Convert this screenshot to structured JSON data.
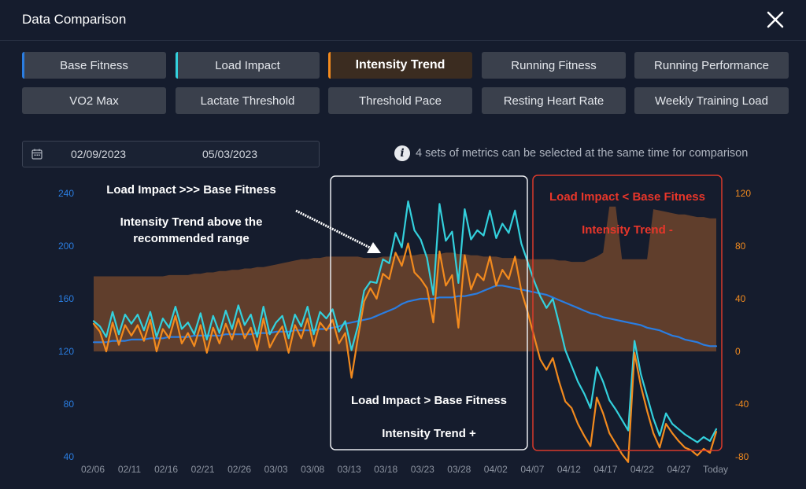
{
  "header": {
    "title": "Data Comparison",
    "close_icon": "close-icon"
  },
  "metrics": [
    {
      "label": "Base Fitness",
      "selected": true,
      "color": "#2a7de1"
    },
    {
      "label": "Load Impact",
      "selected": true,
      "color": "#33d0dc"
    },
    {
      "label": "Intensity Trend",
      "selected": true,
      "color": "#f28a1e",
      "active": true
    },
    {
      "label": "Running Fitness",
      "selected": false
    },
    {
      "label": "Running Performance",
      "selected": false
    },
    {
      "label": "VO2 Max",
      "selected": false
    },
    {
      "label": "Lactate Threshold",
      "selected": false
    },
    {
      "label": "Threshold Pace",
      "selected": false
    },
    {
      "label": "Resting Heart Rate",
      "selected": false
    },
    {
      "label": "Weekly Training Load",
      "selected": false
    }
  ],
  "date_range": {
    "start": "02/09/2023",
    "end": "05/03/2023",
    "icon": "calendar-icon"
  },
  "hint": {
    "icon": "info-icon",
    "text": "4 sets of metrics can be selected at the same time for comparison"
  },
  "annotations": {
    "top_left_1": "Load Impact >>> Base Fitness",
    "top_left_2": "Intensity Trend above the",
    "top_left_3": "recommended range",
    "middle_1": "Load Impact > Base Fitness",
    "middle_2": "Intensity Trend +",
    "right_1": "Load Impact < Base Fitness",
    "right_2": "Intensity Trend -"
  },
  "chart_data": {
    "type": "line",
    "x_labels": [
      "02/06",
      "02/11",
      "02/16",
      "02/21",
      "02/26",
      "03/03",
      "03/08",
      "03/13",
      "03/18",
      "03/23",
      "03/28",
      "04/02",
      "04/07",
      "04/12",
      "04/17",
      "04/22",
      "04/27",
      "Today"
    ],
    "left_axis": {
      "ticks": [
        40,
        80,
        120,
        160,
        200,
        240
      ],
      "ylim": [
        40,
        240
      ],
      "color": "#2a7de1"
    },
    "right_axis": {
      "ticks": [
        -80,
        -40,
        0,
        40,
        80,
        120
      ],
      "ylim": [
        -80,
        120
      ],
      "color": "#f28a1e"
    },
    "recommended_range": {
      "axis": "right",
      "color": "#7a4a2c",
      "values": [
        57,
        57,
        57,
        57,
        57,
        57,
        57,
        57,
        57,
        57,
        57,
        57,
        58,
        58,
        58,
        58,
        59,
        59,
        60,
        60,
        61,
        61,
        62,
        62,
        63,
        63,
        64,
        64,
        65,
        66,
        67,
        68,
        69,
        70,
        70,
        71,
        71,
        72,
        72,
        72,
        72,
        72,
        72,
        71,
        71,
        71,
        72,
        72,
        72,
        73,
        73,
        73,
        74,
        74,
        74,
        74,
        75,
        75,
        74,
        74,
        73,
        73,
        72,
        72,
        72,
        71,
        71,
        71,
        70,
        70,
        70,
        70,
        70,
        70,
        69,
        69,
        68,
        68,
        68,
        70,
        72,
        75,
        110,
        110,
        70,
        70,
        70,
        70,
        70,
        108,
        107,
        106,
        105,
        104,
        104,
        103,
        102,
        102,
        101,
        101
      ]
    },
    "series": [
      {
        "name": "Base Fitness",
        "axis": "left",
        "color": "#2a7de1",
        "values": [
          127,
          127,
          127,
          128,
          128,
          128,
          129,
          129,
          129,
          130,
          130,
          130,
          131,
          131,
          131,
          131,
          132,
          132,
          132,
          132,
          132,
          133,
          133,
          133,
          133,
          133,
          134,
          134,
          134,
          135,
          135,
          135,
          136,
          136,
          136,
          136,
          137,
          137,
          138,
          139,
          141,
          142,
          143,
          144,
          145,
          147,
          149,
          151,
          153,
          156,
          158,
          159,
          160,
          160,
          160,
          161,
          161,
          161,
          162,
          162,
          163,
          164,
          166,
          168,
          170,
          170,
          169,
          168,
          167,
          166,
          165,
          164,
          163,
          161,
          159,
          157,
          155,
          153,
          151,
          149,
          148,
          146,
          145,
          144,
          143,
          142,
          141,
          140,
          138,
          137,
          136,
          134,
          132,
          131,
          129,
          128,
          127,
          125,
          124,
          124
        ]
      },
      {
        "name": "Load Impact",
        "axis": "left",
        "color": "#33d0dc",
        "values": [
          143,
          139,
          131,
          150,
          133,
          148,
          141,
          148,
          136,
          150,
          131,
          145,
          138,
          154,
          137,
          142,
          133,
          149,
          129,
          147,
          134,
          151,
          137,
          155,
          140,
          148,
          131,
          154,
          133,
          142,
          147,
          130,
          148,
          139,
          154,
          133,
          150,
          145,
          152,
          135,
          143,
          121,
          139,
          166,
          173,
          172,
          190,
          187,
          210,
          199,
          234,
          212,
          205,
          191,
          163,
          232,
          204,
          211,
          172,
          228,
          205,
          212,
          208,
          227,
          206,
          217,
          210,
          227,
          202,
          188,
          174,
          162,
          153,
          160,
          141,
          121,
          109,
          97,
          88,
          77,
          108,
          97,
          83,
          76,
          68,
          60,
          128,
          103,
          86,
          69,
          56,
          73,
          65,
          61,
          57,
          54,
          51,
          55,
          52,
          61
        ]
      },
      {
        "name": "Intensity Trend",
        "axis": "right",
        "color": "#f28a1e",
        "values": [
          21,
          15,
          0,
          22,
          5,
          20,
          12,
          20,
          8,
          24,
          0,
          17,
          10,
          27,
          6,
          14,
          4,
          20,
          -1,
          18,
          6,
          21,
          9,
          25,
          10,
          18,
          1,
          25,
          3,
          12,
          19,
          -1,
          20,
          10,
          25,
          4,
          22,
          16,
          24,
          6,
          14,
          -20,
          10,
          38,
          48,
          40,
          59,
          55,
          75,
          65,
          82,
          60,
          55,
          48,
          22,
          76,
          50,
          58,
          18,
          73,
          47,
          59,
          54,
          72,
          50,
          62,
          55,
          72,
          46,
          30,
          12,
          -6,
          -14,
          -5,
          -23,
          -38,
          -43,
          -55,
          -64,
          -72,
          -35,
          -47,
          -62,
          -70,
          -78,
          -84,
          -1,
          -26,
          -45,
          -62,
          -73,
          -55,
          -62,
          -68,
          -73,
          -75,
          -79,
          -74,
          -77,
          -61
        ]
      }
    ]
  }
}
